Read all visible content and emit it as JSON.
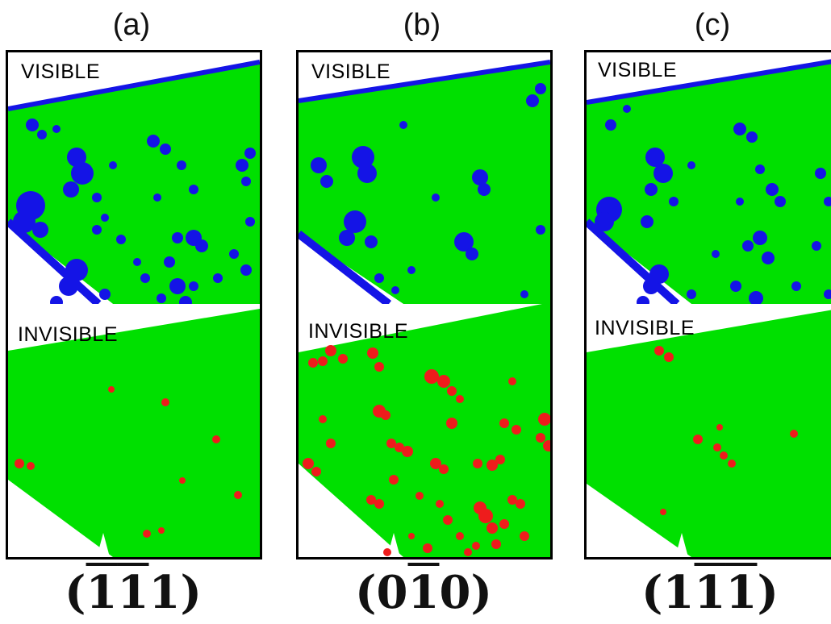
{
  "panels": [
    {
      "id": "a",
      "letter": "(a)",
      "top_label": "VISIBLE",
      "bottom_label": "INVISIBLE",
      "miller": {
        "open": "(",
        "d1": "1",
        "d2": "1",
        "d3": "1",
        "close": ")",
        "bar1": true,
        "bar2": true,
        "bar3": false
      }
    },
    {
      "id": "b",
      "letter": "(b)",
      "top_label": "VISIBLE",
      "bottom_label": "INVISIBLE",
      "miller": {
        "open": "(",
        "d1": "0",
        "d2": "1",
        "d3": "0",
        "close": ")",
        "bar1": false,
        "bar2": true,
        "bar3": false
      }
    },
    {
      "id": "c",
      "letter": "(c)",
      "top_label": "VISIBLE",
      "bottom_label": "INVISIBLE",
      "miller": {
        "open": "(",
        "d1": "1",
        "d2": "1",
        "d3": "1",
        "close": ")",
        "bar1": false,
        "bar2": true,
        "bar3": true
      }
    }
  ],
  "colors": {
    "background_region": "#00e000",
    "visible_defect": "#1414e6",
    "invisible_defect": "#ee1c1c",
    "void": "#ffffff",
    "frame": "#000000"
  }
}
